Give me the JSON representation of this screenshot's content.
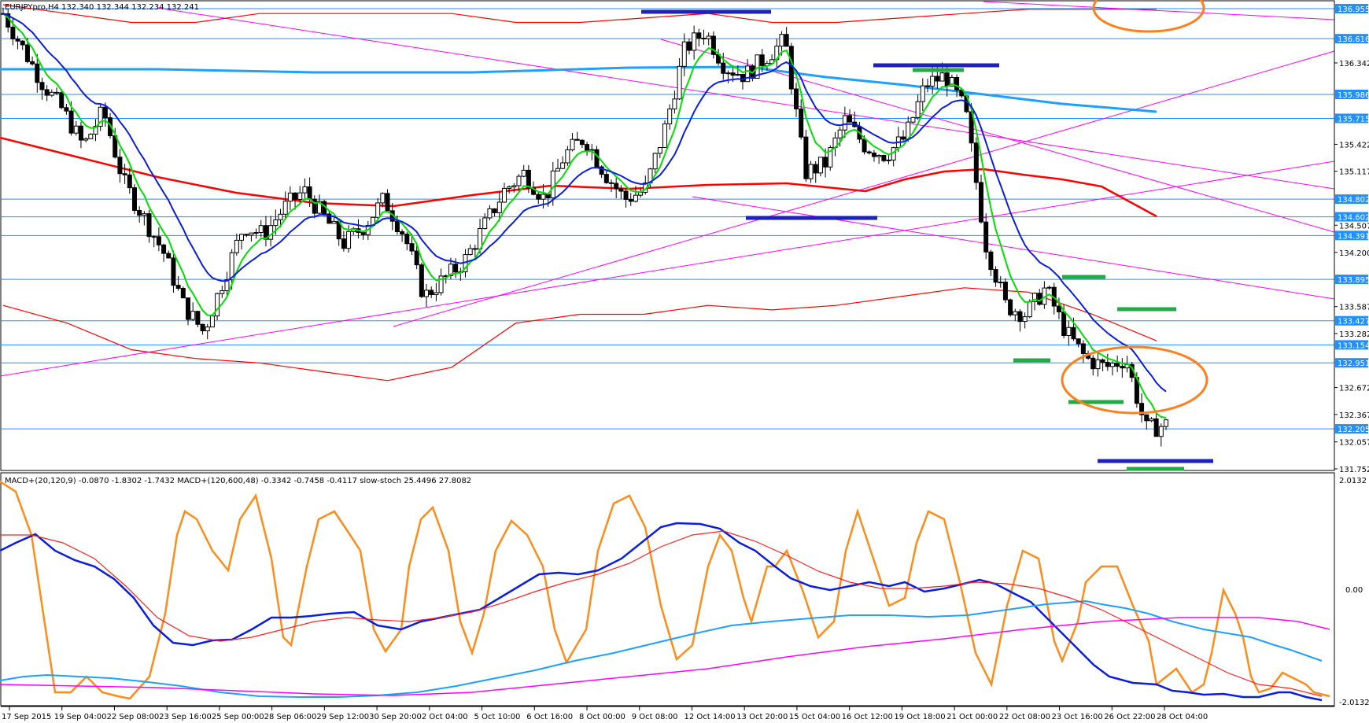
{
  "chart_data": {
    "type": "line",
    "price_header": "EURJPYpro,H4  132.340 132.344 132.234 132.241",
    "indicator_header": "MACD+(20,120,9) -0.0870 -1.8302 -1.7432  MACD+(120,600,48) -0.3342 -0.7458 -0.4117  slow-stoch 25.4496 27.8082",
    "price_axis": {
      "ylim": [
        131.752,
        137.0
      ],
      "ticks": [
        "136.342",
        "135.422",
        "135.117",
        "134.507",
        "134.200",
        "133.587",
        "133.282",
        "132.672",
        "132.367",
        "132.057",
        "131.752"
      ]
    },
    "price_levels": [
      {
        "value": "136.955",
        "color": "#1e90ff"
      },
      {
        "value": "136.616",
        "color": "#1e90ff"
      },
      {
        "value": "135.986",
        "color": "#1e90ff"
      },
      {
        "value": "135.715",
        "color": "#1e90ff"
      },
      {
        "value": "134.802",
        "color": "#1e90ff"
      },
      {
        "value": "134.602",
        "color": "#1e90ff"
      },
      {
        "value": "134.391",
        "color": "#1e90ff"
      },
      {
        "value": "133.895",
        "color": "#1e90ff"
      },
      {
        "value": "133.427",
        "color": "#1e90ff"
      },
      {
        "value": "133.154",
        "color": "#1e90ff"
      },
      {
        "value": "132.951",
        "color": "#1e90ff"
      },
      {
        "value": "132.205",
        "color": "#1e90ff"
      }
    ],
    "indicator_axis": {
      "ticks": [
        "2.0132",
        "0.00",
        "-2.0132"
      ]
    },
    "x_labels": [
      "17 Sep 2015",
      "19 Sep 04:00",
      "22 Sep 08:00",
      "23 Sep 16:00",
      "25 Sep 00:00",
      "28 Sep 06:00",
      "29 Sep 12:00",
      "30 Sep 20:00",
      "2 Oct 04:00",
      "5 Oct 10:00",
      "6 Oct 16:00",
      "8 Oct 00:00",
      "9 Oct 08:00",
      "12 Oct 14:00",
      "13 Oct 20:00",
      "15 Oct 04:00",
      "16 Oct 12:00",
      "19 Oct 18:00",
      "21 Oct 00:00",
      "22 Oct 08:00",
      "23 Oct 16:00",
      "26 Oct 22:00",
      "28 Oct 04:00"
    ],
    "close_path": [
      136.9,
      136.5,
      136.1,
      135.8,
      135.4,
      135.8,
      135.0,
      134.6,
      134.2,
      133.6,
      133.3,
      133.9,
      134.5,
      134.4,
      134.7,
      134.9,
      134.6,
      134.3,
      134.5,
      134.8,
      134.4,
      133.7,
      133.9,
      134.1,
      134.5,
      134.9,
      135.1,
      134.8,
      135.3,
      135.5,
      135.1,
      134.8,
      134.9,
      135.6,
      136.5,
      136.7,
      136.3,
      136.2,
      136.4,
      136.6,
      135.1,
      135.2,
      135.7,
      135.4,
      135.3,
      135.5,
      136.1,
      136.2,
      135.8,
      134.3,
      133.6,
      133.5,
      133.8,
      133.3,
      133.0,
      132.9,
      133.0,
      132.2,
      132.25
    ],
    "bands": {
      "upper": [
        137.0,
        136.9,
        136.8,
        136.8,
        136.9,
        136.9,
        136.9,
        136.9,
        136.8,
        136.8,
        136.85,
        136.9,
        136.8,
        136.8,
        136.85,
        136.9,
        136.95,
        136.95,
        136.95
      ],
      "lower": [
        133.6,
        133.4,
        133.1,
        133.0,
        132.95,
        132.85,
        132.75,
        132.9,
        133.4,
        133.5,
        133.5,
        133.6,
        133.55,
        133.6,
        133.7,
        133.8,
        133.75,
        133.5,
        133.2
      ]
    },
    "legend": []
  }
}
